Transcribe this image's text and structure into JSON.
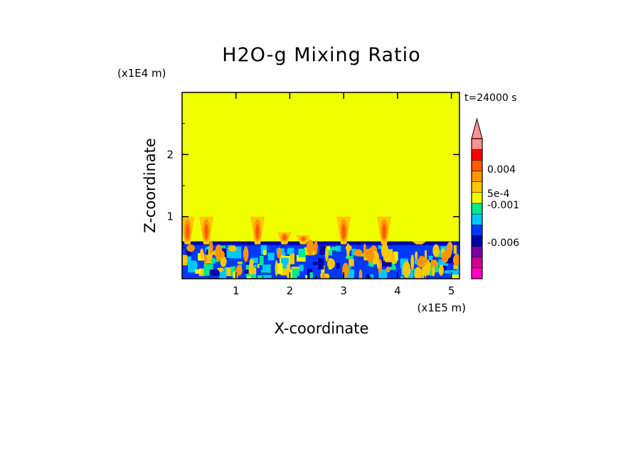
{
  "chart_data": {
    "type": "heatmap",
    "title": "H2O-g Mixing Ratio",
    "xlabel": "X-coordinate",
    "ylabel": "Z-coordinate",
    "x_unit": "(x1E5 m)",
    "y_unit": "(x1E4 m)",
    "time_label": "t=24000 s",
    "xlim": [
      0,
      5.15
    ],
    "ylim": [
      0,
      3.0
    ],
    "x_ticks": [
      "1",
      "2",
      "3",
      "4",
      "5"
    ],
    "y_ticks": [
      "1",
      "2"
    ],
    "background_value_color": "#f0ff00",
    "boundary_layer_top": 0.6,
    "plumes": [
      {
        "x": 0.1,
        "top": 1.0
      },
      {
        "x": 0.45,
        "top": 1.0
      },
      {
        "x": 1.4,
        "top": 1.0
      },
      {
        "x": 1.9,
        "top": 0.75
      },
      {
        "x": 2.25,
        "top": 0.7
      },
      {
        "x": 3.0,
        "top": 1.0
      },
      {
        "x": 3.75,
        "top": 1.0
      },
      {
        "x": 4.4,
        "top": 0.6
      }
    ],
    "colorbar": {
      "colors": [
        "#ff00c0",
        "#d00090",
        "#7a00a8",
        "#0000a8",
        "#0038ff",
        "#00c8ff",
        "#00e890",
        "#f0ff00",
        "#ffc800",
        "#ff9600",
        "#ff5a00",
        "#ff0000",
        "#ff9090"
      ],
      "labels": [
        "0.004",
        "5e-4",
        "-0.001",
        "-0.006"
      ],
      "overflow_triangle": true
    }
  }
}
